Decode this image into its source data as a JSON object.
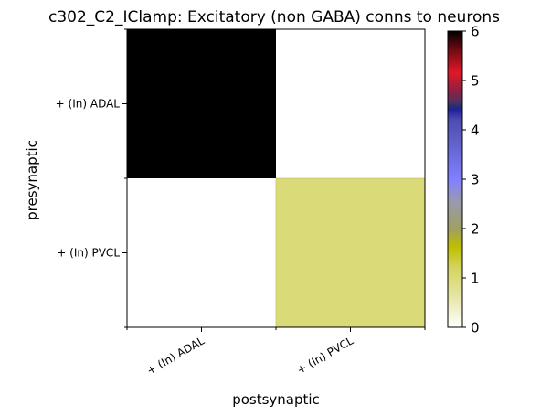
{
  "chart_data": {
    "type": "heatmap",
    "title": "c302_C2_IClamp: Excitatory (non GABA) conns to neurons",
    "xlabel": "postsynaptic",
    "ylabel": "presynaptic",
    "x_categories": [
      "+ (In) ADAL",
      "+ (In) PVCL"
    ],
    "y_categories": [
      "+ (In) ADAL",
      "+ (In) PVCL"
    ],
    "values": [
      [
        6,
        0
      ],
      [
        0,
        1
      ]
    ],
    "colorbar": {
      "range": [
        0,
        6
      ],
      "ticks": [
        "0",
        "1",
        "2",
        "3",
        "4",
        "5",
        "6"
      ],
      "colormap": "gist_stern_r"
    }
  }
}
